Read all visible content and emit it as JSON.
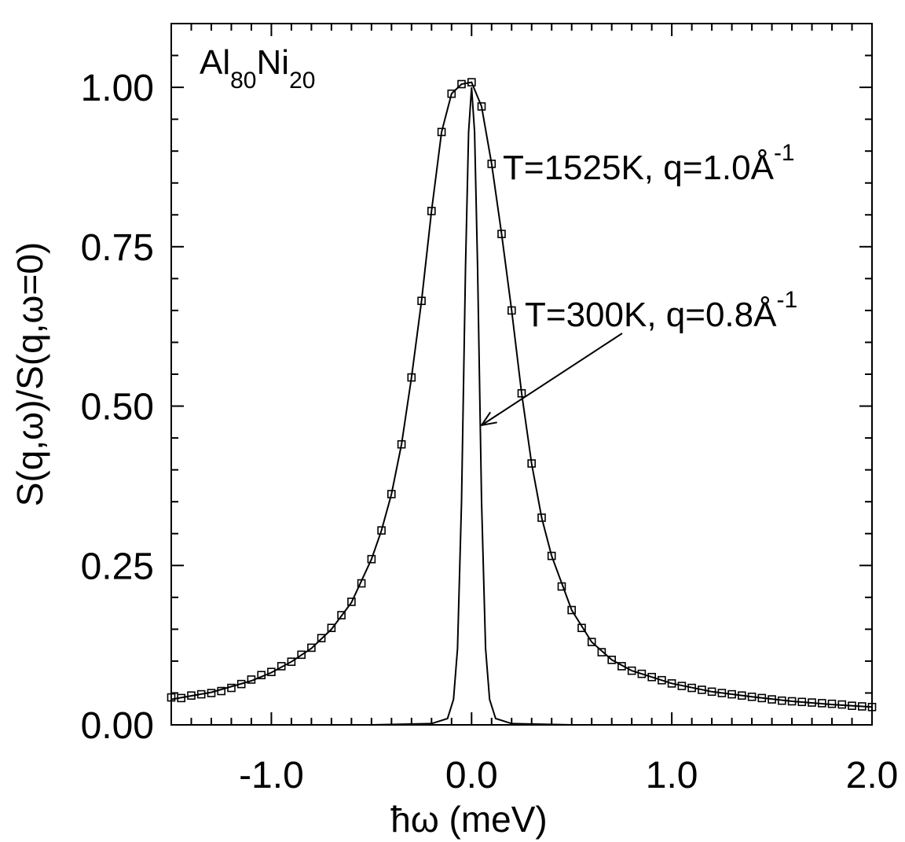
{
  "chart_data": {
    "type": "line",
    "xlabel": "ħω (meV)",
    "ylabel": "S(q,ω)/S(q,ω=0)",
    "xlim": [
      -1.5,
      2.0
    ],
    "ylim": [
      0.0,
      1.1
    ],
    "x_ticks": [
      -1.0,
      0.0,
      1.0,
      2.0
    ],
    "x_tick_labels": [
      "-1.0",
      "0.0",
      "1.0",
      "2.0"
    ],
    "y_ticks": [
      0.0,
      0.25,
      0.5,
      0.75,
      1.0
    ],
    "y_tick_labels": [
      "0.00",
      "0.25",
      "0.50",
      "0.75",
      "1.00"
    ],
    "grid": false,
    "sample_label": {
      "base1": "Al",
      "sub1": "80",
      "base2": "Ni",
      "sub2": "20"
    },
    "annotations": [
      {
        "text": "T=1525K, q=1.0Å",
        "sup": "-1"
      },
      {
        "text": "T=300K, q=0.8Å",
        "sup": "-1",
        "arrow_target": [
          0.05,
          0.47
        ]
      }
    ],
    "series": [
      {
        "style": "markers-square",
        "x": [
          -1.5,
          -1.45,
          -1.4,
          -1.35,
          -1.3,
          -1.25,
          -1.2,
          -1.15,
          -1.1,
          -1.05,
          -1.0,
          -0.95,
          -0.9,
          -0.85,
          -0.8,
          -0.75,
          -0.7,
          -0.65,
          -0.6,
          -0.55,
          -0.5,
          -0.45,
          -0.4,
          -0.35,
          -0.3,
          -0.25,
          -0.2,
          -0.15,
          -0.1,
          -0.05,
          0.0,
          0.05,
          0.1,
          0.15,
          0.2,
          0.25,
          0.3,
          0.35,
          0.4,
          0.45,
          0.5,
          0.55,
          0.6,
          0.65,
          0.7,
          0.75,
          0.8,
          0.85,
          0.9,
          0.95,
          1.0,
          1.05,
          1.1,
          1.15,
          1.2,
          1.25,
          1.3,
          1.35,
          1.4,
          1.45,
          1.5,
          1.55,
          1.6,
          1.65,
          1.7,
          1.75,
          1.8,
          1.85,
          1.9,
          1.95,
          2.0
        ],
        "y": [
          0.043,
          0.042,
          0.046,
          0.048,
          0.05,
          0.053,
          0.058,
          0.064,
          0.071,
          0.078,
          0.083,
          0.092,
          0.099,
          0.11,
          0.121,
          0.136,
          0.152,
          0.172,
          0.193,
          0.222,
          0.26,
          0.305,
          0.362,
          0.44,
          0.545,
          0.665,
          0.806,
          0.93,
          0.99,
          1.005,
          1.008,
          0.97,
          0.88,
          0.77,
          0.65,
          0.52,
          0.41,
          0.325,
          0.265,
          0.217,
          0.18,
          0.152,
          0.13,
          0.114,
          0.102,
          0.092,
          0.085,
          0.08,
          0.075,
          0.07,
          0.065,
          0.061,
          0.058,
          0.055,
          0.052,
          0.05,
          0.048,
          0.046,
          0.044,
          0.042,
          0.04,
          0.038,
          0.037,
          0.036,
          0.035,
          0.034,
          0.033,
          0.032,
          0.03,
          0.029,
          0.028
        ]
      },
      {
        "style": "line",
        "x": [
          -1.5,
          -1.3,
          -1.1,
          -1.0,
          -0.9,
          -0.8,
          -0.7,
          -0.6,
          -0.5,
          -0.45,
          -0.4,
          -0.35,
          -0.3,
          -0.25,
          -0.2,
          -0.15,
          -0.1,
          -0.05,
          0.0,
          0.05,
          0.1,
          0.15,
          0.2,
          0.25,
          0.3,
          0.35,
          0.4,
          0.5,
          0.6,
          0.7,
          0.8,
          0.9,
          1.0,
          1.2,
          1.4,
          1.6,
          1.8,
          2.0
        ],
        "y": [
          0.04,
          0.051,
          0.069,
          0.082,
          0.099,
          0.12,
          0.15,
          0.192,
          0.26,
          0.305,
          0.362,
          0.44,
          0.545,
          0.665,
          0.806,
          0.93,
          0.99,
          1.005,
          1.008,
          0.97,
          0.88,
          0.77,
          0.65,
          0.52,
          0.41,
          0.325,
          0.265,
          0.18,
          0.13,
          0.102,
          0.085,
          0.075,
          0.065,
          0.052,
          0.044,
          0.037,
          0.032,
          0.028
        ]
      },
      {
        "style": "line",
        "x": [
          -1.5,
          -0.5,
          -0.2,
          -0.12,
          -0.09,
          -0.07,
          -0.05,
          -0.03,
          -0.015,
          0.0,
          0.015,
          0.03,
          0.05,
          0.07,
          0.09,
          0.12,
          0.2,
          0.5,
          2.0
        ],
        "y": [
          0.0,
          0.0,
          0.002,
          0.01,
          0.04,
          0.12,
          0.35,
          0.72,
          0.93,
          1.0,
          0.93,
          0.72,
          0.35,
          0.12,
          0.04,
          0.01,
          0.002,
          0.0,
          0.0
        ]
      }
    ]
  }
}
